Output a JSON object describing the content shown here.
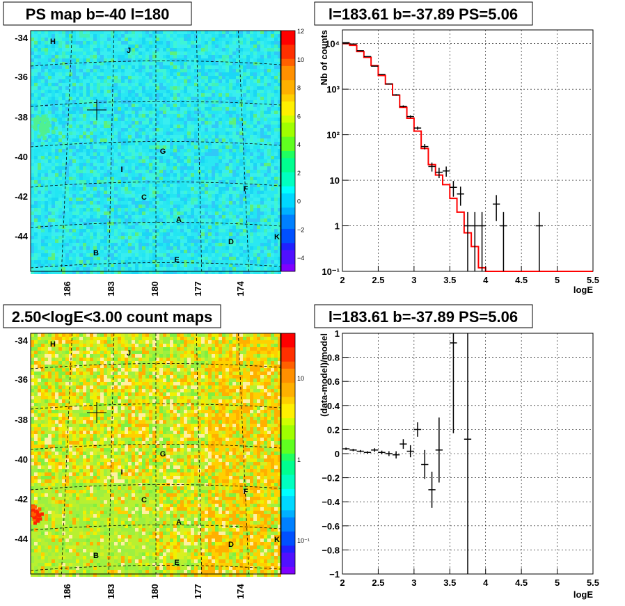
{
  "chart_data": [
    {
      "type": "heatmap",
      "title": "PS map b=-40 l=180",
      "x_ticks": [
        "186",
        "183",
        "180",
        "177",
        "174"
      ],
      "y_ticks": [
        "-34",
        "-36",
        "-38",
        "-40",
        "-42",
        "-44"
      ],
      "colorbar_ticks": [
        "12",
        "10",
        "8",
        "6",
        "4",
        "2",
        "0",
        "−2",
        "−4"
      ],
      "colorbar_range": [
        -5,
        12
      ],
      "sources": [
        "H",
        "J",
        "G",
        "I",
        "F",
        "C",
        "A",
        "D",
        "K",
        "B",
        "E"
      ],
      "colormap": [
        "#7f00ff",
        "#0000ff",
        "#0080ff",
        "#00c0ff",
        "#00ffff",
        "#00ff80",
        "#80ff00",
        "#ffff00",
        "#ff8000",
        "#ff0000"
      ],
      "dominant_color": "#2ae8f2"
    },
    {
      "type": "line",
      "title": "l=183.61 b=-37.89 PS=5.06",
      "xlabel": "logE",
      "ylabel": "Nb of counts",
      "x_ticks": [
        "2",
        "2.5",
        "3",
        "3.5",
        "4",
        "4.5",
        "5",
        "5.5"
      ],
      "y_ticks": [
        "10⁻¹",
        "1",
        "10",
        "10²",
        "10³",
        "10⁴"
      ],
      "xlim": [
        2,
        5.5
      ],
      "ylim": [
        0.1,
        20000
      ],
      "log_y": true,
      "grid": true,
      "series": [
        {
          "kind": "points",
          "x": [
            2.05,
            2.15,
            2.25,
            2.35,
            2.45,
            2.55,
            2.65,
            2.75,
            2.85,
            2.95,
            3.05,
            3.15,
            3.25,
            3.35,
            3.45,
            3.55,
            3.65,
            3.75,
            3.85,
            3.95,
            4.15,
            4.25,
            4.75
          ],
          "y": [
            10500,
            9800,
            7000,
            5200,
            3200,
            2100,
            1300,
            750,
            420,
            250,
            140,
            55,
            20,
            15,
            16,
            7,
            5,
            1,
            1,
            1,
            3,
            1,
            1
          ]
        },
        {
          "kind": "step",
          "color": "#ff0000",
          "edges": [
            2.0,
            2.1,
            2.2,
            2.3,
            2.4,
            2.5,
            2.6,
            2.7,
            2.8,
            2.9,
            3.0,
            3.1,
            3.2,
            3.3,
            3.4,
            3.5,
            3.6,
            3.7,
            3.8,
            3.9,
            4.0,
            5.5
          ],
          "values": [
            10000,
            9200,
            6700,
            5000,
            3300,
            2000,
            1300,
            740,
            400,
            230,
            120,
            50,
            22,
            13,
            8,
            4,
            2,
            0.7,
            0.35,
            0.12,
            0.1
          ]
        }
      ]
    },
    {
      "type": "heatmap",
      "title": "2.50<logE<3.00 count maps",
      "x_ticks": [
        "186",
        "183",
        "180",
        "177",
        "174"
      ],
      "y_ticks": [
        "-34",
        "-36",
        "-38",
        "-40",
        "-42",
        "-44"
      ],
      "colorbar_ticks": [
        "10",
        "1",
        "10⁻¹"
      ],
      "log_scale": true,
      "sources": [
        "H",
        "J",
        "G",
        "I",
        "F",
        "C",
        "A",
        "D",
        "K",
        "B",
        "E"
      ],
      "colormap": [
        "#7f00ff",
        "#0000ff",
        "#0080ff",
        "#00c0ff",
        "#00ffff",
        "#00ff80",
        "#80ff00",
        "#ffff00",
        "#ff8000",
        "#ff0000"
      ],
      "dominant_color": "#c8f028"
    },
    {
      "type": "scatter",
      "title": "l=183.61 b=-37.89 PS=5.06",
      "xlabel": "logE",
      "ylabel": "(data-model)/model",
      "x_ticks": [
        "2",
        "2.5",
        "3",
        "3.5",
        "4",
        "4.5",
        "5",
        "5.5"
      ],
      "y_ticks": [
        "1",
        "0.8",
        "0.6",
        "0.4",
        "0.2",
        "0",
        "−0.2",
        "−0.4",
        "−0.6",
        "−0.8",
        "−1"
      ],
      "xlim": [
        2,
        5.5
      ],
      "ylim": [
        -1,
        1
      ],
      "grid": true,
      "x": [
        2.05,
        2.15,
        2.25,
        2.35,
        2.45,
        2.55,
        2.65,
        2.75,
        2.85,
        2.95,
        3.05,
        3.15,
        3.25,
        3.35,
        3.55,
        3.75
      ],
      "y": [
        0.04,
        0.03,
        0.02,
        0.01,
        0.03,
        0.01,
        0.0,
        -0.01,
        0.08,
        0.02,
        0.2,
        -0.09,
        -0.3,
        0.03,
        0.92,
        0.12
      ],
      "err": [
        0.01,
        0.01,
        0.01,
        0.01,
        0.015,
        0.015,
        0.02,
        0.03,
        0.04,
        0.05,
        0.06,
        0.12,
        0.15,
        0.27,
        0.75,
        1.2
      ]
    }
  ]
}
